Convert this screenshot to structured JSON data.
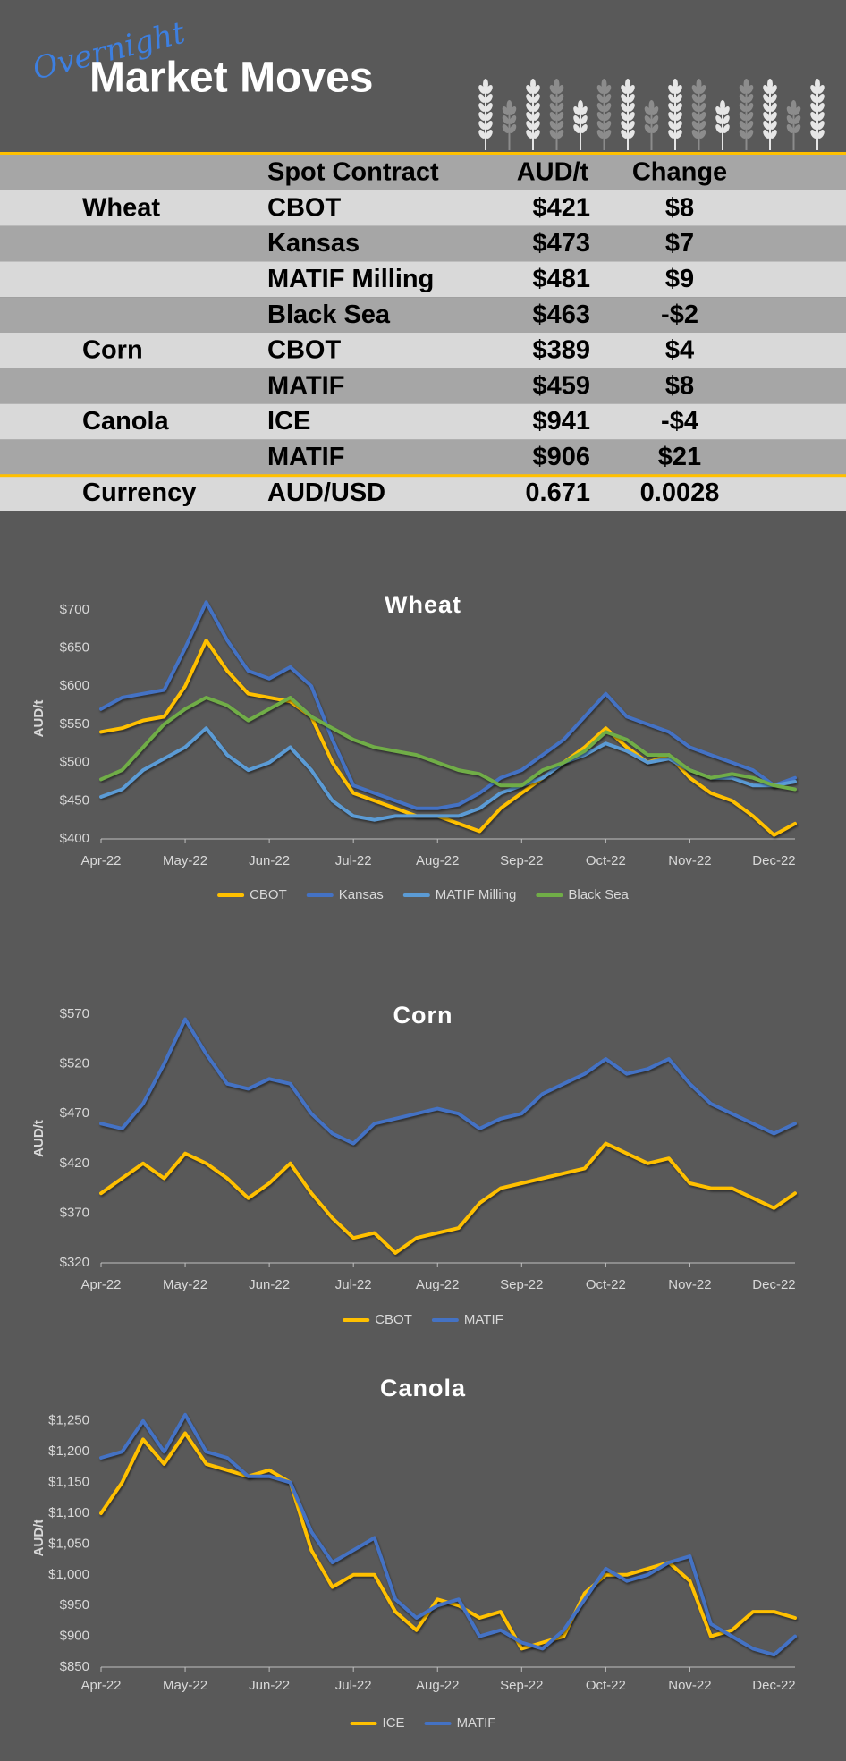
{
  "header": {
    "script": "Overnight",
    "title": "Market Moves"
  },
  "table": {
    "columns": [
      "Spot Contract",
      "AUD/t",
      "Change"
    ],
    "rows": [
      [
        "Wheat",
        "CBOT",
        "$421",
        "$8"
      ],
      [
        null,
        "Kansas",
        "$473",
        "$7"
      ],
      [
        null,
        "MATIF Milling",
        "$481",
        "$9"
      ],
      [
        null,
        "Black Sea",
        "$463",
        "-$2"
      ],
      [
        "Corn",
        "CBOT",
        "$389",
        "$4"
      ],
      [
        null,
        "MATIF",
        "$459",
        "$8"
      ],
      [
        "Canola",
        "ICE",
        "$941",
        "-$4"
      ],
      [
        null,
        "MATIF",
        "$906",
        "$21"
      ],
      [
        "Currency",
        "AUD/USD",
        "0.671",
        "0.0028"
      ]
    ]
  },
  "chart_data": [
    {
      "type": "line",
      "title": "Wheat",
      "y_label": "AUD/t",
      "categories": [
        "Apr-22",
        null,
        null,
        null,
        "May-22",
        null,
        null,
        null,
        "Jun-22",
        null,
        null,
        null,
        "Jul-22",
        null,
        null,
        null,
        "Aug-22",
        null,
        null,
        null,
        "Sep-22",
        null,
        null,
        null,
        "Oct-22",
        null,
        null,
        null,
        "Nov-22",
        null,
        null,
        null,
        "Dec-22",
        null
      ],
      "ylim": [
        400,
        715
      ],
      "yticks": [
        {
          "value": 400,
          "label": "$400"
        },
        {
          "value": 450,
          "label": "$450"
        },
        {
          "value": 500,
          "label": "$500"
        },
        {
          "value": 550,
          "label": "$550"
        },
        {
          "value": 600,
          "label": "$600"
        },
        {
          "value": 650,
          "label": "$650"
        },
        {
          "value": 700,
          "label": "$700"
        }
      ],
      "series": [
        {
          "name": "CBOT",
          "color": "#ffc000",
          "values": [
            540,
            545,
            555,
            560,
            600,
            660,
            620,
            590,
            585,
            580,
            560,
            500,
            460,
            450,
            440,
            430,
            430,
            420,
            410,
            440,
            460,
            480,
            500,
            520,
            545,
            520,
            500,
            510,
            480,
            460,
            450,
            430,
            405,
            420
          ]
        },
        {
          "name": "Kansas",
          "color": "#4472c4",
          "values": [
            570,
            585,
            590,
            595,
            650,
            710,
            660,
            620,
            610,
            625,
            600,
            530,
            470,
            460,
            450,
            440,
            440,
            445,
            460,
            480,
            490,
            510,
            530,
            560,
            590,
            560,
            550,
            540,
            520,
            510,
            500,
            490,
            470,
            480
          ]
        },
        {
          "name": "MATIF Milling",
          "color": "#5b9bd5",
          "values": [
            455,
            465,
            490,
            505,
            520,
            545,
            510,
            490,
            500,
            520,
            490,
            450,
            430,
            425,
            430,
            430,
            430,
            430,
            440,
            460,
            470,
            480,
            500,
            510,
            525,
            515,
            500,
            505,
            490,
            480,
            480,
            470,
            470,
            475
          ]
        },
        {
          "name": "Black Sea",
          "color": "#70ad47",
          "values": [
            478,
            490,
            520,
            550,
            570,
            585,
            575,
            555,
            570,
            585,
            560,
            545,
            530,
            520,
            515,
            510,
            500,
            490,
            485,
            470,
            470,
            490,
            500,
            515,
            540,
            530,
            510,
            510,
            490,
            480,
            485,
            480,
            470,
            465
          ]
        }
      ]
    },
    {
      "type": "line",
      "title": "Corn",
      "y_label": "AUD/t",
      "categories": [
        "Apr-22",
        null,
        null,
        null,
        "May-22",
        null,
        null,
        null,
        "Jun-22",
        null,
        null,
        null,
        "Jul-22",
        null,
        null,
        null,
        "Aug-22",
        null,
        null,
        null,
        "Sep-22",
        null,
        null,
        null,
        "Oct-22",
        null,
        null,
        null,
        "Nov-22",
        null,
        null,
        null,
        "Dec-22",
        null
      ],
      "ylim": [
        320,
        570
      ],
      "yticks": [
        {
          "value": 320,
          "label": "$320"
        },
        {
          "value": 370,
          "label": "$370"
        },
        {
          "value": 420,
          "label": "$420"
        },
        {
          "value": 470,
          "label": "$470"
        },
        {
          "value": 520,
          "label": "$520"
        },
        {
          "value": 570,
          "label": "$570"
        }
      ],
      "series": [
        {
          "name": "CBOT",
          "color": "#ffc000",
          "values": [
            390,
            405,
            420,
            405,
            430,
            420,
            405,
            385,
            400,
            420,
            390,
            365,
            345,
            350,
            330,
            345,
            350,
            355,
            380,
            395,
            400,
            405,
            410,
            415,
            440,
            430,
            420,
            425,
            400,
            395,
            395,
            385,
            375,
            390
          ]
        },
        {
          "name": "MATIF",
          "color": "#4472c4",
          "values": [
            460,
            455,
            480,
            520,
            565,
            530,
            500,
            495,
            505,
            500,
            470,
            450,
            440,
            460,
            465,
            470,
            475,
            470,
            455,
            465,
            470,
            490,
            500,
            510,
            525,
            510,
            515,
            525,
            500,
            480,
            470,
            460,
            450,
            460
          ]
        }
      ]
    },
    {
      "type": "line",
      "title": "Canola",
      "y_label": "AUD/t",
      "categories": [
        "Apr-22",
        null,
        null,
        null,
        "May-22",
        null,
        null,
        null,
        "Jun-22",
        null,
        null,
        null,
        "Jul-22",
        null,
        null,
        null,
        "Aug-22",
        null,
        null,
        null,
        "Sep-22",
        null,
        null,
        null,
        "Oct-22",
        null,
        null,
        null,
        "Nov-22",
        null,
        null,
        null,
        "Dec-22",
        null
      ],
      "ylim": [
        850,
        1270
      ],
      "yticks": [
        {
          "value": 850,
          "label": "$850"
        },
        {
          "value": 900,
          "label": "$900"
        },
        {
          "value": 950,
          "label": "$950"
        },
        {
          "value": 1000,
          "label": "$1,000"
        },
        {
          "value": 1050,
          "label": "$1,050"
        },
        {
          "value": 1100,
          "label": "$1,100"
        },
        {
          "value": 1150,
          "label": "$1,150"
        },
        {
          "value": 1200,
          "label": "$1,200"
        },
        {
          "value": 1250,
          "label": "$1,250"
        }
      ],
      "series": [
        {
          "name": "ICE",
          "color": "#ffc000",
          "values": [
            1100,
            1150,
            1220,
            1180,
            1230,
            1180,
            1170,
            1160,
            1170,
            1150,
            1040,
            980,
            1000,
            1000,
            940,
            910,
            960,
            950,
            930,
            940,
            880,
            890,
            900,
            970,
            1000,
            1000,
            1010,
            1020,
            990,
            900,
            910,
            940,
            940,
            930
          ]
        },
        {
          "name": "MATIF",
          "color": "#4472c4",
          "values": [
            1190,
            1200,
            1250,
            1200,
            1260,
            1200,
            1190,
            1160,
            1160,
            1150,
            1070,
            1020,
            1040,
            1060,
            960,
            930,
            950,
            960,
            900,
            910,
            890,
            880,
            910,
            960,
            1010,
            990,
            1000,
            1020,
            1030,
            920,
            900,
            880,
            870,
            900
          ]
        }
      ]
    }
  ]
}
